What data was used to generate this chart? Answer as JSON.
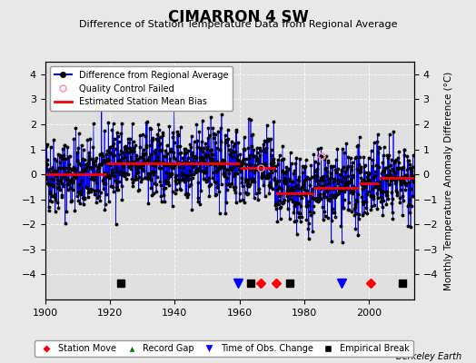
{
  "title": "CIMARRON 4 SW",
  "subtitle": "Difference of Station Temperature Data from Regional Average",
  "ylabel": "Monthly Temperature Anomaly Difference (°C)",
  "xlim": [
    1900,
    2014
  ],
  "ylim": [
    -5,
    4.5
  ],
  "yticks": [
    -4,
    -3,
    -2,
    -1,
    0,
    1,
    2,
    3,
    4
  ],
  "xticks": [
    1900,
    1920,
    1940,
    1960,
    1980,
    2000
  ],
  "bg_color": "#e8e8e8",
  "plot_bg_color": "#e0e0e0",
  "seed": 42,
  "segments": [
    {
      "start": 1900.0,
      "end": 1919.0,
      "bias": 0.0
    },
    {
      "start": 1919.0,
      "end": 1960.0,
      "bias": 0.45
    },
    {
      "start": 1960.0,
      "end": 1971.0,
      "bias": 0.25
    },
    {
      "start": 1971.0,
      "end": 1983.0,
      "bias": -0.75
    },
    {
      "start": 1983.0,
      "end": 1997.0,
      "bias": -0.55
    },
    {
      "start": 1997.0,
      "end": 2003.0,
      "bias": -0.35
    },
    {
      "start": 2003.0,
      "end": 2014.0,
      "bias": -0.15
    }
  ],
  "station_moves": [
    1966.5,
    1971.5,
    2000.5
  ],
  "time_obs_changes": [
    1959.5,
    1991.5
  ],
  "empirical_breaks": [
    1923.5,
    1963.5,
    1975.5,
    2010.5
  ],
  "record_gaps": [],
  "qc_failed_approx": [
    1966.5,
    1985.3
  ],
  "watermark": "Berkeley Earth",
  "marker_y": -4.35
}
